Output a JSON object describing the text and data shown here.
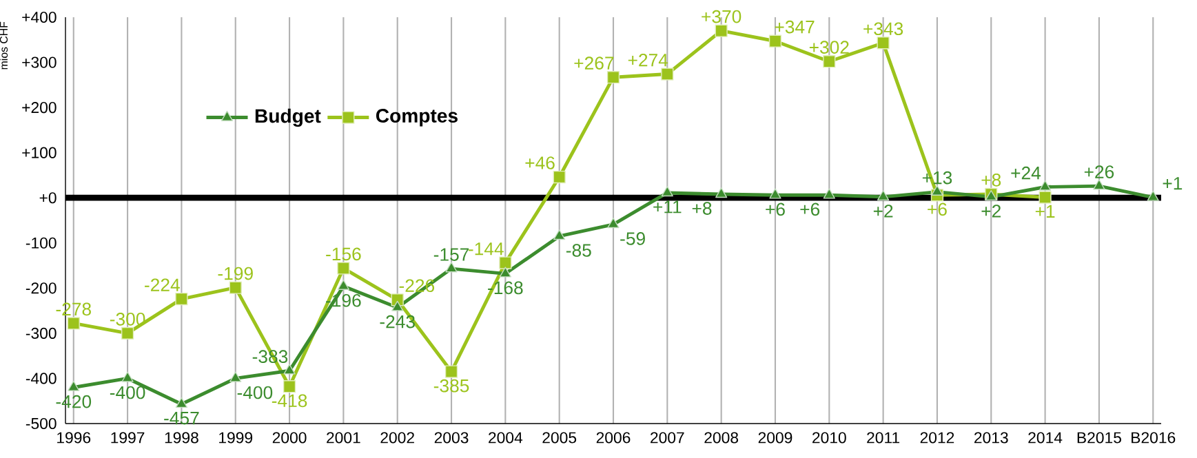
{
  "chart_data": {
    "type": "line",
    "ylabel": "mios CHF",
    "categories": [
      "1996",
      "1997",
      "1998",
      "1999",
      "2000",
      "2001",
      "2002",
      "2003",
      "2004",
      "2005",
      "2006",
      "2007",
      "2008",
      "2009",
      "2010",
      "2011",
      "2012",
      "2013",
      "2014",
      "B2015",
      "B2016"
    ],
    "series": [
      {
        "name": "Budget",
        "color": "#3c8c2e",
        "marker": "triangle",
        "values": [
          -420,
          -400,
          -457,
          -400,
          -383,
          -196,
          -243,
          -157,
          -168,
          -85,
          -59,
          11,
          8,
          6,
          6,
          2,
          13,
          2,
          24,
          26,
          1
        ],
        "value_labels": [
          "-420",
          "-400",
          "-457",
          "-400",
          "-383",
          "-196",
          "-243",
          "-157",
          "-168",
          "-85",
          "-59",
          "+11",
          "+8",
          "+6",
          "+6",
          "+2",
          "+13",
          "+2",
          "+24",
          "+26",
          "+1"
        ]
      },
      {
        "name": "Comptes",
        "color": "#9cc31c",
        "marker": "square",
        "values": [
          -278,
          -300,
          -224,
          -199,
          -418,
          -156,
          -226,
          -385,
          -144,
          46,
          267,
          274,
          370,
          347,
          302,
          343,
          6,
          8,
          1,
          null,
          null
        ],
        "value_labels": [
          "-278",
          "-300",
          "-224",
          "-199",
          "-418",
          "-156",
          "-226",
          "-385",
          "-144",
          "+46",
          "+267",
          "+274",
          "+370",
          "+347",
          "+302",
          "+343",
          "+6",
          "+8",
          "+1",
          null,
          null
        ]
      }
    ],
    "ylim": [
      -500,
      400
    ],
    "yticks": [
      {
        "value": -500,
        "label": "-500"
      },
      {
        "value": -400,
        "label": "-400"
      },
      {
        "value": -300,
        "label": "-300"
      },
      {
        "value": -200,
        "label": "-200"
      },
      {
        "value": -100,
        "label": "-100"
      },
      {
        "value": 0,
        "label": "+0"
      },
      {
        "value": 100,
        "label": "+100"
      },
      {
        "value": 200,
        "label": "+200"
      },
      {
        "value": 300,
        "label": "+300"
      },
      {
        "value": 400,
        "label": "+400"
      }
    ],
    "grid": "x",
    "legend": "top left",
    "ref_lines": [
      {
        "axis": "y",
        "value": 0,
        "color": "#000000"
      }
    ]
  }
}
